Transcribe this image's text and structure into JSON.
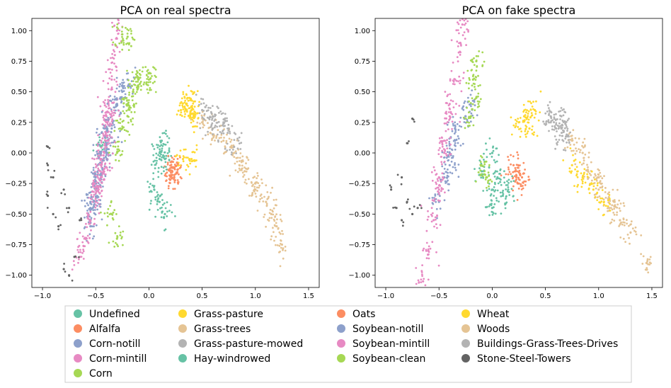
{
  "chart_data": [
    {
      "type": "scatter",
      "title": "PCA on real spectra",
      "xlabel": "",
      "ylabel": "",
      "xlim": [
        -1.1,
        1.6
      ],
      "ylim": [
        -1.1,
        1.1
      ],
      "xticks": [
        "−1.0",
        "−0.5",
        "0.0",
        "0.5",
        "1.0",
        "1.5"
      ],
      "xtick_values": [
        -1.0,
        -0.5,
        0.0,
        0.5,
        1.0,
        1.5
      ],
      "yticks": [
        "1.00",
        "0.75",
        "0.50",
        "0.25",
        "0.00",
        "−0.25",
        "−0.50",
        "−0.75",
        "−1.00"
      ],
      "ytick_values": [
        1.0,
        0.75,
        0.5,
        0.25,
        0.0,
        -0.25,
        -0.5,
        -0.75,
        -1.0
      ],
      "grid": false,
      "series": [
        {
          "name": "Undefined",
          "color": "#66c2a5",
          "points": [
            [
              -0.45,
              0.05
            ],
            [
              0.1,
              -0.05
            ]
          ]
        },
        {
          "name": "Alfalfa",
          "color": "#fc8d62",
          "points": [
            [
              0.22,
              -0.18
            ],
            [
              0.24,
              -0.12
            ],
            [
              0.2,
              -0.22
            ],
            [
              0.26,
              -0.16
            ]
          ]
        },
        {
          "name": "Corn-notill",
          "color": "#8da0cb",
          "points": [
            [
              -0.55,
              -0.45
            ],
            [
              -0.5,
              -0.3
            ],
            [
              -0.45,
              -0.2
            ],
            [
              -0.4,
              0.0
            ],
            [
              -0.35,
              0.2
            ],
            [
              -0.3,
              0.4
            ],
            [
              -0.25,
              0.5
            ],
            [
              -0.2,
              0.6
            ],
            [
              -0.45,
              -0.1
            ],
            [
              -0.38,
              0.1
            ],
            [
              -0.55,
              -0.6
            ],
            [
              -0.52,
              -0.4
            ]
          ]
        },
        {
          "name": "Corn-mintill",
          "color": "#e78ac3",
          "points": [
            [
              -0.65,
              -0.85
            ],
            [
              -0.6,
              -0.7
            ],
            [
              -0.55,
              -0.55
            ],
            [
              -0.5,
              -0.4
            ],
            [
              -0.45,
              -0.2
            ],
            [
              -0.42,
              0.0
            ],
            [
              -0.4,
              0.2
            ],
            [
              -0.38,
              0.4
            ],
            [
              -0.35,
              0.6
            ],
            [
              -0.32,
              0.8
            ],
            [
              -0.3,
              1.0
            ],
            [
              -0.45,
              -0.05
            ],
            [
              -0.5,
              -0.25
            ],
            [
              -0.4,
              0.3
            ]
          ]
        },
        {
          "name": "Corn",
          "color": "#a6d854",
          "points": [
            [
              -0.3,
              0.0
            ],
            [
              -0.25,
              0.2
            ],
            [
              -0.2,
              0.4
            ],
            [
              -0.1,
              0.6
            ],
            [
              0.0,
              0.65
            ],
            [
              -0.35,
              -0.5
            ],
            [
              -0.3,
              -0.7
            ],
            [
              -0.25,
              0.97
            ],
            [
              -0.2,
              0.95
            ]
          ]
        },
        {
          "name": "Grass-pasture",
          "color": "#ffd92f",
          "points": [
            [
              0.3,
              0.35
            ],
            [
              0.35,
              0.4
            ],
            [
              0.4,
              0.32
            ],
            [
              0.38,
              0.45
            ],
            [
              0.32,
              -0.05
            ],
            [
              0.4,
              -0.05
            ]
          ]
        },
        {
          "name": "Grass-trees",
          "color": "#e5c494",
          "points": [
            [
              0.6,
              0.15
            ],
            [
              0.8,
              0.0
            ],
            [
              0.9,
              -0.15
            ],
            [
              1.0,
              -0.3
            ],
            [
              1.1,
              -0.4
            ],
            [
              1.2,
              -0.6
            ],
            [
              0.7,
              0.1
            ],
            [
              0.5,
              0.25
            ],
            [
              1.25,
              -0.75
            ]
          ]
        },
        {
          "name": "Grass-pasture-mowed",
          "color": "#b3b3b3",
          "points": [
            [
              0.5,
              0.35
            ],
            [
              0.6,
              0.3
            ],
            [
              0.7,
              0.25
            ],
            [
              0.75,
              0.2
            ]
          ]
        },
        {
          "name": "Hay-windrowed",
          "color": "#66c2a5",
          "points": [
            [
              0.1,
              0.0
            ],
            [
              0.15,
              -0.05
            ],
            [
              0.05,
              -0.3
            ],
            [
              0.1,
              -0.4
            ],
            [
              0.15,
              -0.5
            ],
            [
              0.12,
              0.1
            ]
          ]
        },
        {
          "name": "Oats",
          "color": "#fc8d62",
          "points": [
            [
              0.22,
              -0.15
            ]
          ]
        },
        {
          "name": "Soybean-notill",
          "color": "#8da0cb",
          "points": [
            [
              -0.55,
              -0.4
            ],
            [
              -0.5,
              -0.2
            ],
            [
              -0.45,
              0.0
            ],
            [
              -0.4,
              0.2
            ],
            [
              -0.3,
              0.4
            ]
          ]
        },
        {
          "name": "Soybean-mintill",
          "color": "#e78ac3",
          "points": [
            [
              -0.5,
              -0.3
            ],
            [
              -0.45,
              -0.1
            ],
            [
              -0.4,
              0.1
            ],
            [
              -0.35,
              0.3
            ]
          ]
        },
        {
          "name": "Soybean-clean",
          "color": "#a6d854",
          "points": [
            [
              -0.2,
              0.3
            ],
            [
              -0.15,
              0.5
            ],
            [
              -0.1,
              0.6
            ],
            [
              0.0,
              0.6
            ]
          ]
        },
        {
          "name": "Wheat",
          "color": "#ffd92f",
          "points": [
            [
              0.4,
              0.35
            ],
            [
              0.42,
              0.3
            ]
          ]
        },
        {
          "name": "Woods",
          "color": "#e5c494",
          "points": [
            [
              0.85,
              -0.1
            ],
            [
              1.0,
              -0.25
            ],
            [
              1.15,
              -0.5
            ]
          ]
        },
        {
          "name": "Buildings-Grass-Trees-Drives",
          "color": "#b3b3b3",
          "points": [
            [
              0.6,
              0.2
            ],
            [
              0.8,
              0.05
            ]
          ]
        },
        {
          "name": "Stone-Steel-Towers",
          "color": "#636363",
          "points": [
            [
              -0.95,
              0.05
            ],
            [
              -0.95,
              -0.1
            ],
            [
              -0.9,
              -0.2
            ],
            [
              -0.95,
              -0.35
            ],
            [
              -0.9,
              -0.5
            ],
            [
              -0.85,
              -0.6
            ],
            [
              -0.8,
              -0.3
            ],
            [
              -0.75,
              -0.45
            ],
            [
              -0.8,
              -0.95
            ],
            [
              -0.75,
              -1.0
            ],
            [
              -0.7,
              -0.85
            ],
            [
              -0.65,
              -0.55
            ]
          ]
        }
      ]
    },
    {
      "type": "scatter",
      "title": "PCA on fake spectra",
      "xlabel": "",
      "ylabel": "",
      "xlim": [
        -1.1,
        1.6
      ],
      "ylim": [
        -1.1,
        1.1
      ],
      "xticks": [
        "−1.0",
        "−0.5",
        "0.0",
        "0.5",
        "1.0",
        "1.5"
      ],
      "xtick_values": [
        -1.0,
        -0.5,
        0.0,
        0.5,
        1.0,
        1.5
      ],
      "yticks": [
        "1.00",
        "0.75",
        "0.50",
        "0.25",
        "0.00",
        "−0.25",
        "−0.50",
        "−0.75",
        "−1.00"
      ],
      "ytick_values": [
        1.0,
        0.75,
        0.5,
        0.25,
        0.0,
        -0.25,
        -0.5,
        -0.75,
        -1.0
      ],
      "grid": false,
      "series": [
        {
          "name": "Undefined",
          "color": "#66c2a5",
          "points": [
            [
              -0.1,
              -0.15
            ],
            [
              0.0,
              -0.3
            ]
          ]
        },
        {
          "name": "Alfalfa",
          "color": "#fc8d62",
          "points": [
            [
              0.2,
              -0.1
            ],
            [
              0.25,
              -0.25
            ],
            [
              0.28,
              -0.2
            ]
          ]
        },
        {
          "name": "Corn-notill",
          "color": "#8da0cb",
          "points": [
            [
              -0.5,
              -0.4
            ],
            [
              -0.45,
              -0.2
            ],
            [
              -0.4,
              0.0
            ],
            [
              -0.35,
              0.2
            ]
          ]
        },
        {
          "name": "Corn-mintill",
          "color": "#e78ac3",
          "points": [
            [
              -0.65,
              -1.05
            ],
            [
              -0.6,
              -0.8
            ],
            [
              -0.55,
              -0.55
            ],
            [
              -0.5,
              -0.3
            ],
            [
              -0.45,
              0.0
            ],
            [
              -0.4,
              0.3
            ],
            [
              -0.35,
              0.6
            ],
            [
              -0.3,
              0.9
            ],
            [
              -0.28,
              1.05
            ]
          ]
        },
        {
          "name": "Corn",
          "color": "#a6d854",
          "points": [
            [
              -0.05,
              -0.2
            ],
            [
              -0.1,
              -0.1
            ]
          ]
        },
        {
          "name": "Grass-pasture",
          "color": "#ffd92f",
          "points": [
            [
              0.25,
              0.25
            ],
            [
              0.3,
              0.3
            ],
            [
              0.35,
              0.2
            ],
            [
              0.4,
              0.35
            ]
          ]
        },
        {
          "name": "Grass-trees",
          "color": "#e5c494",
          "points": [
            [
              0.75,
              0.1
            ],
            [
              0.85,
              0.0
            ],
            [
              0.9,
              -0.15
            ],
            [
              1.0,
              -0.3
            ],
            [
              1.1,
              -0.45
            ],
            [
              1.2,
              -0.55
            ],
            [
              1.3,
              -0.65
            ],
            [
              1.45,
              -0.9
            ]
          ]
        },
        {
          "name": "Grass-pasture-mowed",
          "color": "#b3b3b3",
          "points": [
            [
              0.55,
              0.25
            ],
            [
              0.6,
              0.2
            ],
            [
              0.65,
              0.3
            ],
            [
              0.7,
              0.15
            ]
          ]
        },
        {
          "name": "Hay-windrowed",
          "color": "#66c2a5",
          "points": [
            [
              0.0,
              0.0
            ],
            [
              0.05,
              -0.2
            ],
            [
              0.1,
              -0.35
            ],
            [
              0.15,
              -0.3
            ],
            [
              0.0,
              -0.45
            ]
          ]
        },
        {
          "name": "Oats",
          "color": "#fc8d62",
          "points": [
            [
              0.22,
              -0.15
            ]
          ]
        },
        {
          "name": "Soybean-notill",
          "color": "#8da0cb",
          "points": [
            [
              -0.4,
              -0.1
            ],
            [
              -0.35,
              0.1
            ],
            [
              -0.25,
              0.3
            ],
            [
              -0.2,
              0.4
            ]
          ]
        },
        {
          "name": "Soybean-mintill",
          "color": "#e78ac3",
          "points": [
            [
              -0.5,
              -0.2
            ],
            [
              -0.45,
              0.1
            ],
            [
              -0.4,
              0.4
            ]
          ]
        },
        {
          "name": "Soybean-clean",
          "color": "#a6d854",
          "points": [
            [
              -0.2,
              0.3
            ],
            [
              -0.15,
              0.45
            ],
            [
              -0.18,
              0.6
            ],
            [
              -0.15,
              0.75
            ]
          ]
        },
        {
          "name": "Wheat",
          "color": "#ffd92f",
          "points": [
            [
              0.75,
              -0.1
            ],
            [
              0.85,
              -0.2
            ],
            [
              0.95,
              -0.3
            ],
            [
              1.05,
              -0.4
            ]
          ]
        },
        {
          "name": "Woods",
          "color": "#e5c494",
          "points": [
            [
              1.0,
              -0.2
            ],
            [
              1.15,
              -0.4
            ]
          ]
        },
        {
          "name": "Buildings-Grass-Trees-Drives",
          "color": "#b3b3b3",
          "points": [
            [
              0.55,
              0.3
            ],
            [
              0.65,
              0.2
            ]
          ]
        },
        {
          "name": "Stone-Steel-Towers",
          "color": "#636363",
          "points": [
            [
              -0.75,
              0.28
            ],
            [
              -0.8,
              0.08
            ],
            [
              -0.85,
              -0.2
            ],
            [
              -0.95,
              -0.3
            ],
            [
              -0.9,
              -0.45
            ],
            [
              -0.85,
              -0.55
            ],
            [
              -0.8,
              -0.4
            ],
            [
              -0.75,
              -0.5
            ],
            [
              -0.7,
              -0.45
            ]
          ]
        }
      ]
    }
  ],
  "legend": {
    "placement": "bottom",
    "columns": [
      [
        "Undefined",
        "Alfalfa",
        "Corn-notill",
        "Corn-mintill",
        "Corn"
      ],
      [
        "Grass-pasture",
        "Grass-trees",
        "Grass-pasture-mowed",
        "Hay-windrowed"
      ],
      [
        "Oats",
        "Soybean-notill",
        "Soybean-mintill",
        "Soybean-clean"
      ],
      [
        "Wheat",
        "Woods",
        "Buildings-Grass-Trees-Drives",
        "Stone-Steel-Towers"
      ]
    ],
    "colors": {
      "Undefined": "#66c2a5",
      "Alfalfa": "#fc8d62",
      "Corn-notill": "#8da0cb",
      "Corn-mintill": "#e78ac3",
      "Corn": "#a6d854",
      "Grass-pasture": "#ffd92f",
      "Grass-trees": "#e5c494",
      "Grass-pasture-mowed": "#b3b3b3",
      "Hay-windrowed": "#66c2a5",
      "Oats": "#fc8d62",
      "Soybean-notill": "#8da0cb",
      "Soybean-mintill": "#e78ac3",
      "Soybean-clean": "#a6d854",
      "Wheat": "#ffd92f",
      "Woods": "#e5c494",
      "Buildings-Grass-Trees-Drives": "#b3b3b3",
      "Stone-Steel-Towers": "#636363"
    }
  }
}
